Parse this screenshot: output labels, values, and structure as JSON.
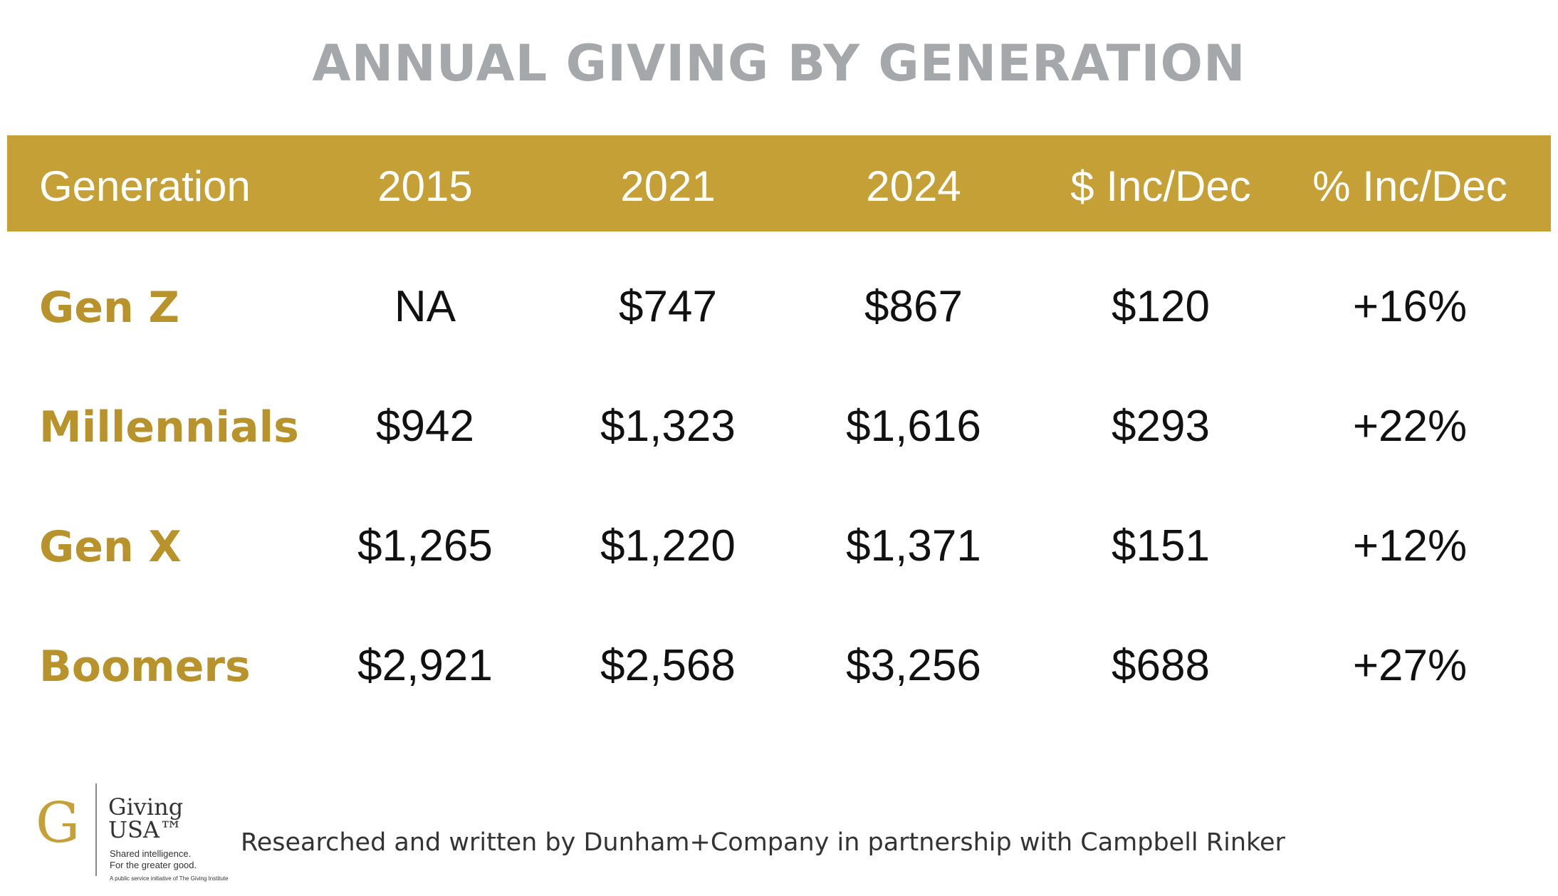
{
  "chart_data": {
    "type": "table",
    "title": "ANNUAL GIVING BY GENERATION",
    "columns": [
      "Generation",
      "2015",
      "2021",
      "2024",
      "$ Inc/Dec",
      "% Inc/Dec"
    ],
    "rows": [
      {
        "generation": "Gen Z",
        "cells": [
          "NA",
          "$747",
          "$867",
          "$120",
          "+16%"
        ]
      },
      {
        "generation": "Millennials",
        "cells": [
          "$942",
          "$1,323",
          "$1,616",
          "$293",
          "+22%"
        ]
      },
      {
        "generation": "Gen X",
        "cells": [
          "$1,265",
          "$1,220",
          "$1,371",
          "$151",
          "+12%"
        ]
      },
      {
        "generation": "Boomers",
        "cells": [
          "$2,921",
          "$2,568",
          "$3,256",
          "$688",
          "+27%"
        ]
      }
    ]
  },
  "footer": {
    "logo_mark": "G",
    "logo_name_line1": "Giving",
    "logo_name_line2": "USA™",
    "logo_tagline_line1": "Shared intelligence.",
    "logo_tagline_line2": "For the greater good.",
    "logo_initiative": "A public service initiative of The Giving Institute",
    "credit": "Researched and written by Dunham+Company in partnership with Campbell Rinker"
  },
  "colors": {
    "header_band": "#c4a036",
    "generation_label": "#b8922a",
    "title": "#a5a8ab"
  }
}
